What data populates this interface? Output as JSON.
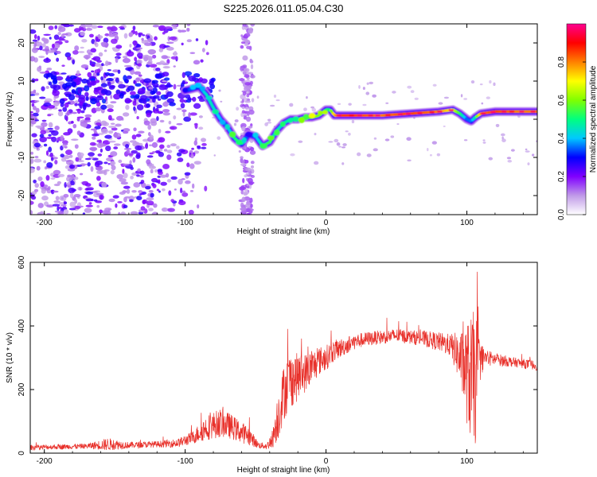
{
  "chart_data": [
    {
      "type": "heatmap",
      "title": "S225.2026.011.05.04.C30",
      "xlabel": "Height of straight line (km)",
      "ylabel": "Frequency (Hz)",
      "xlim": [
        -210,
        150
      ],
      "ylim": [
        -25,
        25
      ],
      "xticks": [
        -200,
        -100,
        0,
        100
      ],
      "yticks": [
        -20,
        -10,
        0,
        10,
        20
      ],
      "colorbar": {
        "label": "Normalized spectral amplitude",
        "range": [
          0,
          1
        ],
        "ticks": [
          "0.0",
          "0.2",
          "0.4",
          "0.6",
          "0.8"
        ],
        "tick_values": [
          0,
          0.2,
          0.4,
          0.6,
          0.8
        ],
        "colors": [
          "#ffffff",
          "#c09ae8",
          "#8000ff",
          "#0000ff",
          "#00c8ff",
          "#00ff80",
          "#80ff00",
          "#ffff00",
          "#ff8000",
          "#ff0000",
          "#ff0090"
        ]
      },
      "ridge": {
        "x": [
          -100,
          -95,
          -90,
          -85,
          -80,
          -75,
          -70,
          -65,
          -60,
          -55,
          -50,
          -45,
          -40,
          -35,
          -30,
          -25,
          -20,
          -15,
          -10,
          -5,
          0,
          3,
          6,
          10,
          20,
          40,
          60,
          80,
          90,
          95,
          100,
          103,
          106,
          110,
          120,
          135,
          150
        ],
        "freq": [
          7.5,
          8,
          8.5,
          6.5,
          3,
          0,
          -2,
          -5,
          -6.5,
          -4,
          -4.5,
          -7,
          -6,
          -3,
          -1,
          0,
          0,
          0.5,
          0.5,
          1,
          2.5,
          2.5,
          1,
          1,
          1,
          1,
          1.5,
          2,
          2.5,
          1.5,
          0,
          -0.5,
          0.5,
          1.5,
          2,
          2,
          2
        ],
        "amplitude": [
          0.3,
          0.35,
          0.3,
          0.45,
          0.45,
          0.4,
          0.35,
          0.5,
          0.55,
          0.3,
          0.35,
          0.5,
          0.55,
          0.45,
          0.45,
          0.5,
          0.5,
          0.55,
          0.6,
          0.6,
          0.55,
          0.5,
          0.75,
          0.85,
          0.85,
          0.8,
          0.85,
          0.8,
          0.7,
          0.55,
          0.35,
          0.35,
          0.45,
          0.8,
          0.85,
          0.8,
          0.8
        ]
      }
    },
    {
      "type": "line",
      "xlabel": "Height of straight line (km)",
      "ylabel": "SNR (10 * v/v)",
      "xlim": [
        -210,
        150
      ],
      "ylim": [
        0,
        600
      ],
      "xticks": [
        -200,
        -100,
        0,
        100
      ],
      "yticks": [
        0,
        200,
        400,
        600
      ],
      "color": "#e8302a",
      "series": [
        {
          "name": "SNR",
          "x": [
            -210,
            -190,
            -170,
            -155,
            -140,
            -120,
            -105,
            -95,
            -85,
            -75,
            -68,
            -62,
            -55,
            -48,
            -42,
            -38,
            -34,
            -30,
            -26,
            -22,
            -18,
            -14,
            -10,
            -5,
            0,
            5,
            10,
            20,
            30,
            40,
            50,
            60,
            70,
            80,
            88,
            92,
            96,
            100,
            103,
            106,
            108,
            112,
            120,
            135,
            150
          ],
          "y": [
            18,
            20,
            22,
            28,
            25,
            28,
            32,
            48,
            80,
            95,
            85,
            70,
            55,
            25,
            22,
            45,
            120,
            190,
            230,
            235,
            245,
            255,
            270,
            290,
            300,
            320,
            330,
            350,
            360,
            365,
            370,
            365,
            360,
            350,
            340,
            320,
            290,
            250,
            230,
            240,
            290,
            300,
            295,
            285,
            275
          ],
          "spread": [
            8,
            8,
            8,
            20,
            10,
            10,
            14,
            20,
            40,
            45,
            40,
            35,
            30,
            10,
            10,
            30,
            80,
            90,
            90,
            80,
            70,
            60,
            55,
            45,
            40,
            35,
            30,
            25,
            22,
            22,
            22,
            22,
            25,
            30,
            35,
            60,
            90,
            160,
            200,
            220,
            90,
            30,
            20,
            15,
            15
          ]
        }
      ]
    }
  ]
}
